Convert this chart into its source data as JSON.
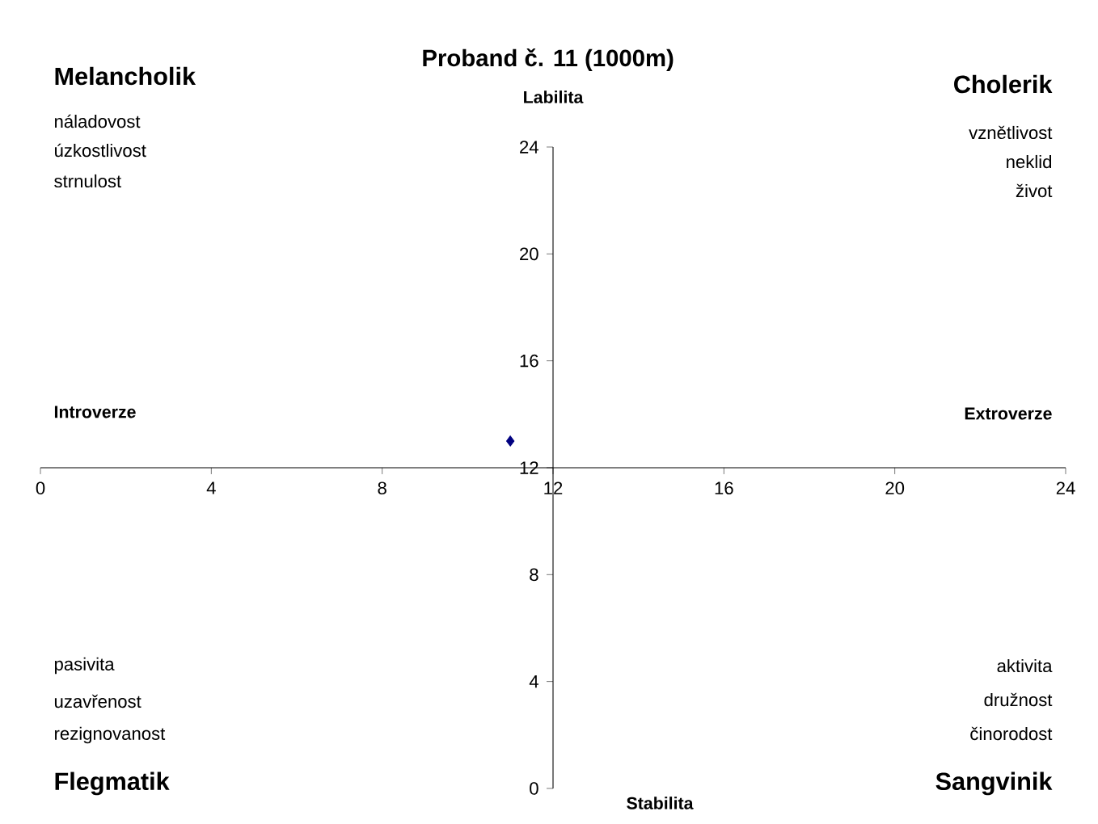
{
  "chart_data": {
    "type": "scatter",
    "title": "Proband č. 11 (1000m)",
    "x": [
      11
    ],
    "values": [
      13
    ],
    "color": "#000080",
    "marker": "diamond",
    "xlim": [
      0,
      24
    ],
    "ylim": [
      0,
      24
    ],
    "xticks": [
      0,
      4,
      8,
      12,
      16,
      20,
      24
    ],
    "yticks": [
      0,
      4,
      8,
      12,
      16,
      20,
      24
    ],
    "grid": false,
    "annotations": [
      "Melancholik",
      "náladovost",
      "úzkostlivost",
      "strnulost",
      "Cholerik",
      "vznětlivost",
      "neklid",
      "život",
      "Introverze",
      "Extroverze",
      "pasivita",
      "uzavřenost",
      "rezignovanost",
      "Flegmatik",
      "aktivita",
      "družnost",
      "činorodost",
      "Sangvinik",
      "Labilita",
      "Stabilita"
    ]
  }
}
